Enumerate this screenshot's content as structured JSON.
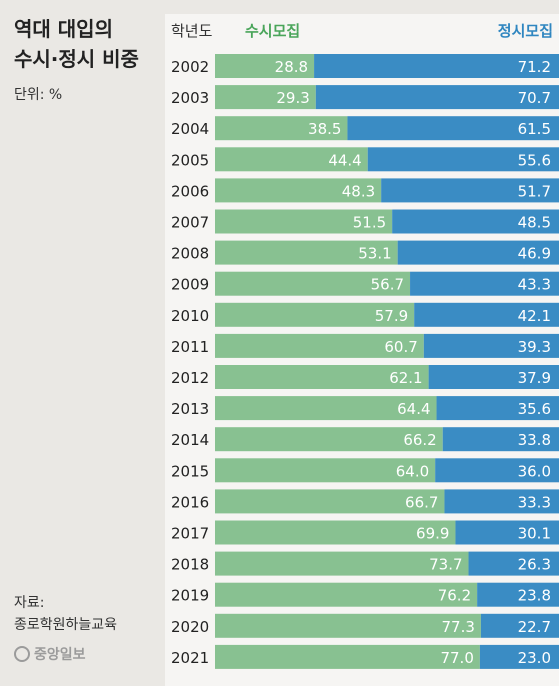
{
  "title_lines": [
    "역대 대입의",
    "수시·정시 비중"
  ],
  "unit": "단위: %",
  "source_label": "자료:",
  "source_name": "종로학원하늘교육",
  "logo_text": "중앙일보",
  "colors": {
    "early": "#88c191",
    "regular": "#3a8cc4",
    "early_text": "#4aa55a",
    "regular_text": "#2f86c0"
  },
  "chart_data": {
    "type": "bar",
    "stacked": true,
    "orientation": "horizontal",
    "category_header": "학년도",
    "categories": [
      "2002",
      "2003",
      "2004",
      "2005",
      "2006",
      "2007",
      "2008",
      "2009",
      "2010",
      "2011",
      "2012",
      "2013",
      "2014",
      "2015",
      "2016",
      "2017",
      "2018",
      "2019",
      "2020",
      "2021"
    ],
    "series": [
      {
        "name": "수시모집",
        "values": [
          "28.8",
          "29.3",
          "38.5",
          "44.4",
          "48.3",
          "51.5",
          "53.1",
          "56.7",
          "57.9",
          "60.7",
          "62.1",
          "64.4",
          "66.2",
          "64.0",
          "66.7",
          "69.9",
          "73.7",
          "76.2",
          "77.3",
          "77.0"
        ]
      },
      {
        "name": "정시모집",
        "values": [
          "71.2",
          "70.7",
          "61.5",
          "55.6",
          "51.7",
          "48.5",
          "46.9",
          "43.3",
          "42.1",
          "39.3",
          "37.9",
          "35.6",
          "33.8",
          "36.0",
          "33.3",
          "30.1",
          "26.3",
          "23.8",
          "22.7",
          "23.0"
        ]
      }
    ],
    "xlim": [
      0,
      100
    ]
  }
}
